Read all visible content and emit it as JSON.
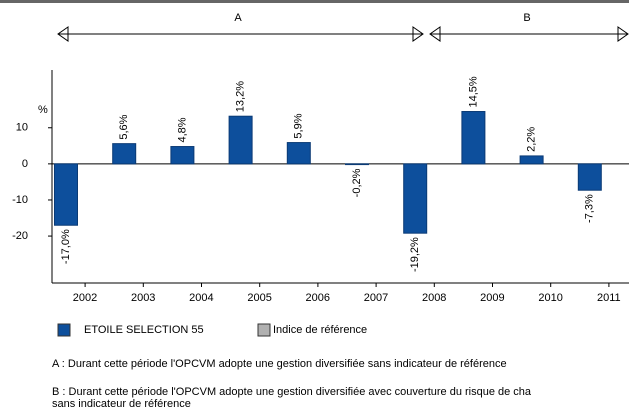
{
  "chart_data": {
    "type": "bar",
    "y_label": "%",
    "annotations": [
      "A",
      "B"
    ],
    "categories": [
      "2002",
      "2003",
      "2004",
      "2005",
      "2006",
      "2007",
      "2008",
      "2009",
      "2010",
      "2011"
    ],
    "series": [
      {
        "name": "ETOILE SELECTION 55",
        "color": "#0d4f9c",
        "values": [
          -17.0,
          5.6,
          4.8,
          13.2,
          5.9,
          -0.2,
          -19.2,
          14.5,
          2.2,
          -7.3
        ],
        "value_labels": [
          "-17,0%",
          "5,6%",
          "4,8%",
          "13,2%",
          "5,9%",
          "-0,2%",
          "-19,2%",
          "14,5%",
          "2,2%",
          "-7,3%"
        ]
      },
      {
        "name": "Indice de référence",
        "color": "#b0b0b0",
        "values": [
          null,
          null,
          null,
          null,
          null,
          null,
          null,
          null,
          null,
          null
        ]
      }
    ],
    "ylim": [
      -33,
      26
    ],
    "yticks": [
      10,
      0,
      -10,
      -20
    ],
    "notes": [
      "A : Durant cette période l'OPCVM adopte une gestion diversifiée sans indicateur de référence",
      "B : Durant cette période l'OPCVM adopte une gestion diversifiée avec couverture du risque de cha",
      "sans indicateur de référence"
    ]
  }
}
